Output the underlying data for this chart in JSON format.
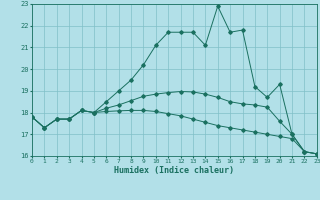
{
  "xlabel": "Humidex (Indice chaleur)",
  "background_color": "#b2e0e8",
  "grid_color": "#80c0c8",
  "line_color": "#1a7060",
  "hours": [
    0,
    1,
    2,
    3,
    4,
    5,
    6,
    7,
    8,
    9,
    10,
    11,
    12,
    13,
    14,
    15,
    16,
    17,
    18,
    19,
    20,
    21,
    22,
    23
  ],
  "line1": [
    17.8,
    17.3,
    17.7,
    17.7,
    18.1,
    18.0,
    18.5,
    19.0,
    19.5,
    20.2,
    21.1,
    21.7,
    21.7,
    21.7,
    21.1,
    22.9,
    21.7,
    21.8,
    19.2,
    18.7,
    19.3,
    17.0,
    16.2,
    16.1
  ],
  "line2": [
    17.8,
    17.3,
    17.7,
    17.7,
    18.1,
    18.0,
    18.2,
    18.35,
    18.55,
    18.75,
    18.85,
    18.92,
    18.97,
    18.95,
    18.85,
    18.7,
    18.5,
    18.4,
    18.35,
    18.25,
    17.6,
    17.0,
    16.2,
    16.1
  ],
  "line3": [
    17.8,
    17.3,
    17.7,
    17.7,
    18.1,
    18.0,
    18.05,
    18.08,
    18.1,
    18.1,
    18.05,
    17.95,
    17.85,
    17.7,
    17.55,
    17.4,
    17.3,
    17.2,
    17.1,
    17.0,
    16.9,
    16.8,
    16.2,
    16.1
  ],
  "ylim": [
    16,
    23
  ],
  "xlim": [
    0,
    23
  ],
  "yticks": [
    16,
    17,
    18,
    19,
    20,
    21,
    22,
    23
  ]
}
